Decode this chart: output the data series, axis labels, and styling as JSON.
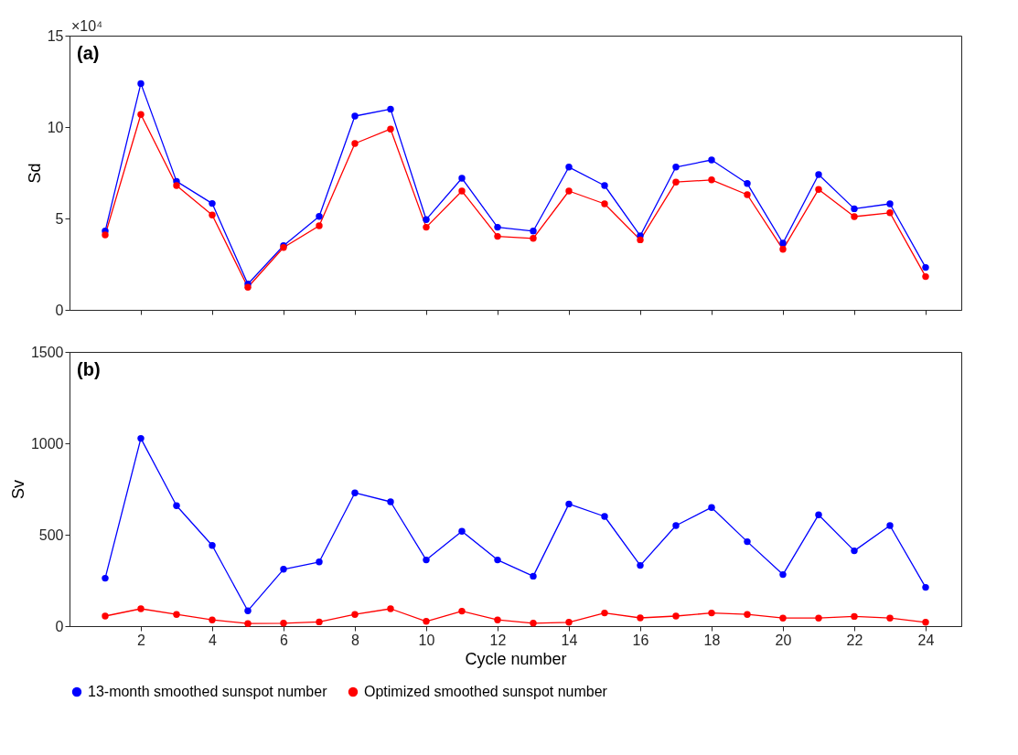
{
  "chart_data": [
    {
      "type": "line",
      "ylabel": "Sd",
      "annotations": [
        "(a)",
        "×10⁴"
      ],
      "x": [
        1,
        2,
        3,
        4,
        5,
        6,
        7,
        8,
        9,
        10,
        11,
        12,
        13,
        14,
        15,
        16,
        17,
        18,
        19,
        20,
        21,
        22,
        23,
        24
      ],
      "xlim": [
        0,
        25
      ],
      "xticks": [
        2,
        4,
        6,
        8,
        10,
        12,
        14,
        16,
        18,
        20,
        22,
        24
      ],
      "ylim": [
        0,
        15
      ],
      "yticks": [
        0,
        5,
        10,
        15
      ],
      "tick_labels": "y",
      "grid": false,
      "legend": "bottom",
      "marker": "circle",
      "line_style": "solid",
      "series": [
        {
          "name": "13-month smoothed sunspot number",
          "color": "#0000ff",
          "values": [
            4.31,
            12.38,
            7.03,
            5.82,
            1.41,
            3.51,
            5.11,
            10.6,
            10.98,
            4.94,
            7.2,
            4.52,
            4.31,
            7.81,
            6.8,
            4.05,
            7.81,
            8.2,
            6.91,
            3.65,
            7.4,
            5.53,
            5.8,
            2.32
          ]
        },
        {
          "name": "Optimized smoothed sunspot number",
          "color": "#ff0000",
          "values": [
            4.1,
            10.69,
            6.8,
            5.19,
            1.24,
            3.41,
            4.6,
            9.1,
            9.89,
            4.52,
            6.5,
            4.02,
            3.91,
            6.5,
            5.8,
            3.83,
            6.99,
            7.11,
            6.3,
            3.31,
            6.59,
            5.1,
            5.31,
            1.82
          ]
        }
      ]
    },
    {
      "type": "line",
      "ylabel": "Sv",
      "xlabel": "Cycle number",
      "annotations": [
        "(b)"
      ],
      "x": [
        1,
        2,
        3,
        4,
        5,
        6,
        7,
        8,
        9,
        10,
        11,
        12,
        13,
        14,
        15,
        16,
        17,
        18,
        19,
        20,
        21,
        22,
        23,
        24
      ],
      "xlim": [
        0,
        25
      ],
      "xticks": [
        2,
        4,
        6,
        8,
        10,
        12,
        14,
        16,
        18,
        20,
        22,
        24
      ],
      "ylim": [
        0,
        1500
      ],
      "yticks": [
        0,
        500,
        1000,
        1500
      ],
      "grid": false,
      "legend": "bottom",
      "marker": "circle",
      "line_style": "solid",
      "series": [
        {
          "name": "13-month smoothed sunspot number",
          "color": "#0000ff",
          "values": [
            262,
            1027,
            659,
            441,
            84,
            311,
            351,
            729,
            680,
            362,
            519,
            362,
            273,
            668,
            600,
            332,
            550,
            649,
            462,
            282,
            609,
            412,
            550,
            212
          ]
        },
        {
          "name": "Optimized smoothed sunspot number",
          "color": "#ff0000",
          "values": [
            55,
            95,
            64,
            34,
            14,
            16,
            23,
            64,
            95,
            26,
            82,
            34,
            16,
            21,
            72,
            45,
            55,
            72,
            64,
            44,
            44,
            53,
            44,
            21
          ]
        }
      ]
    }
  ]
}
